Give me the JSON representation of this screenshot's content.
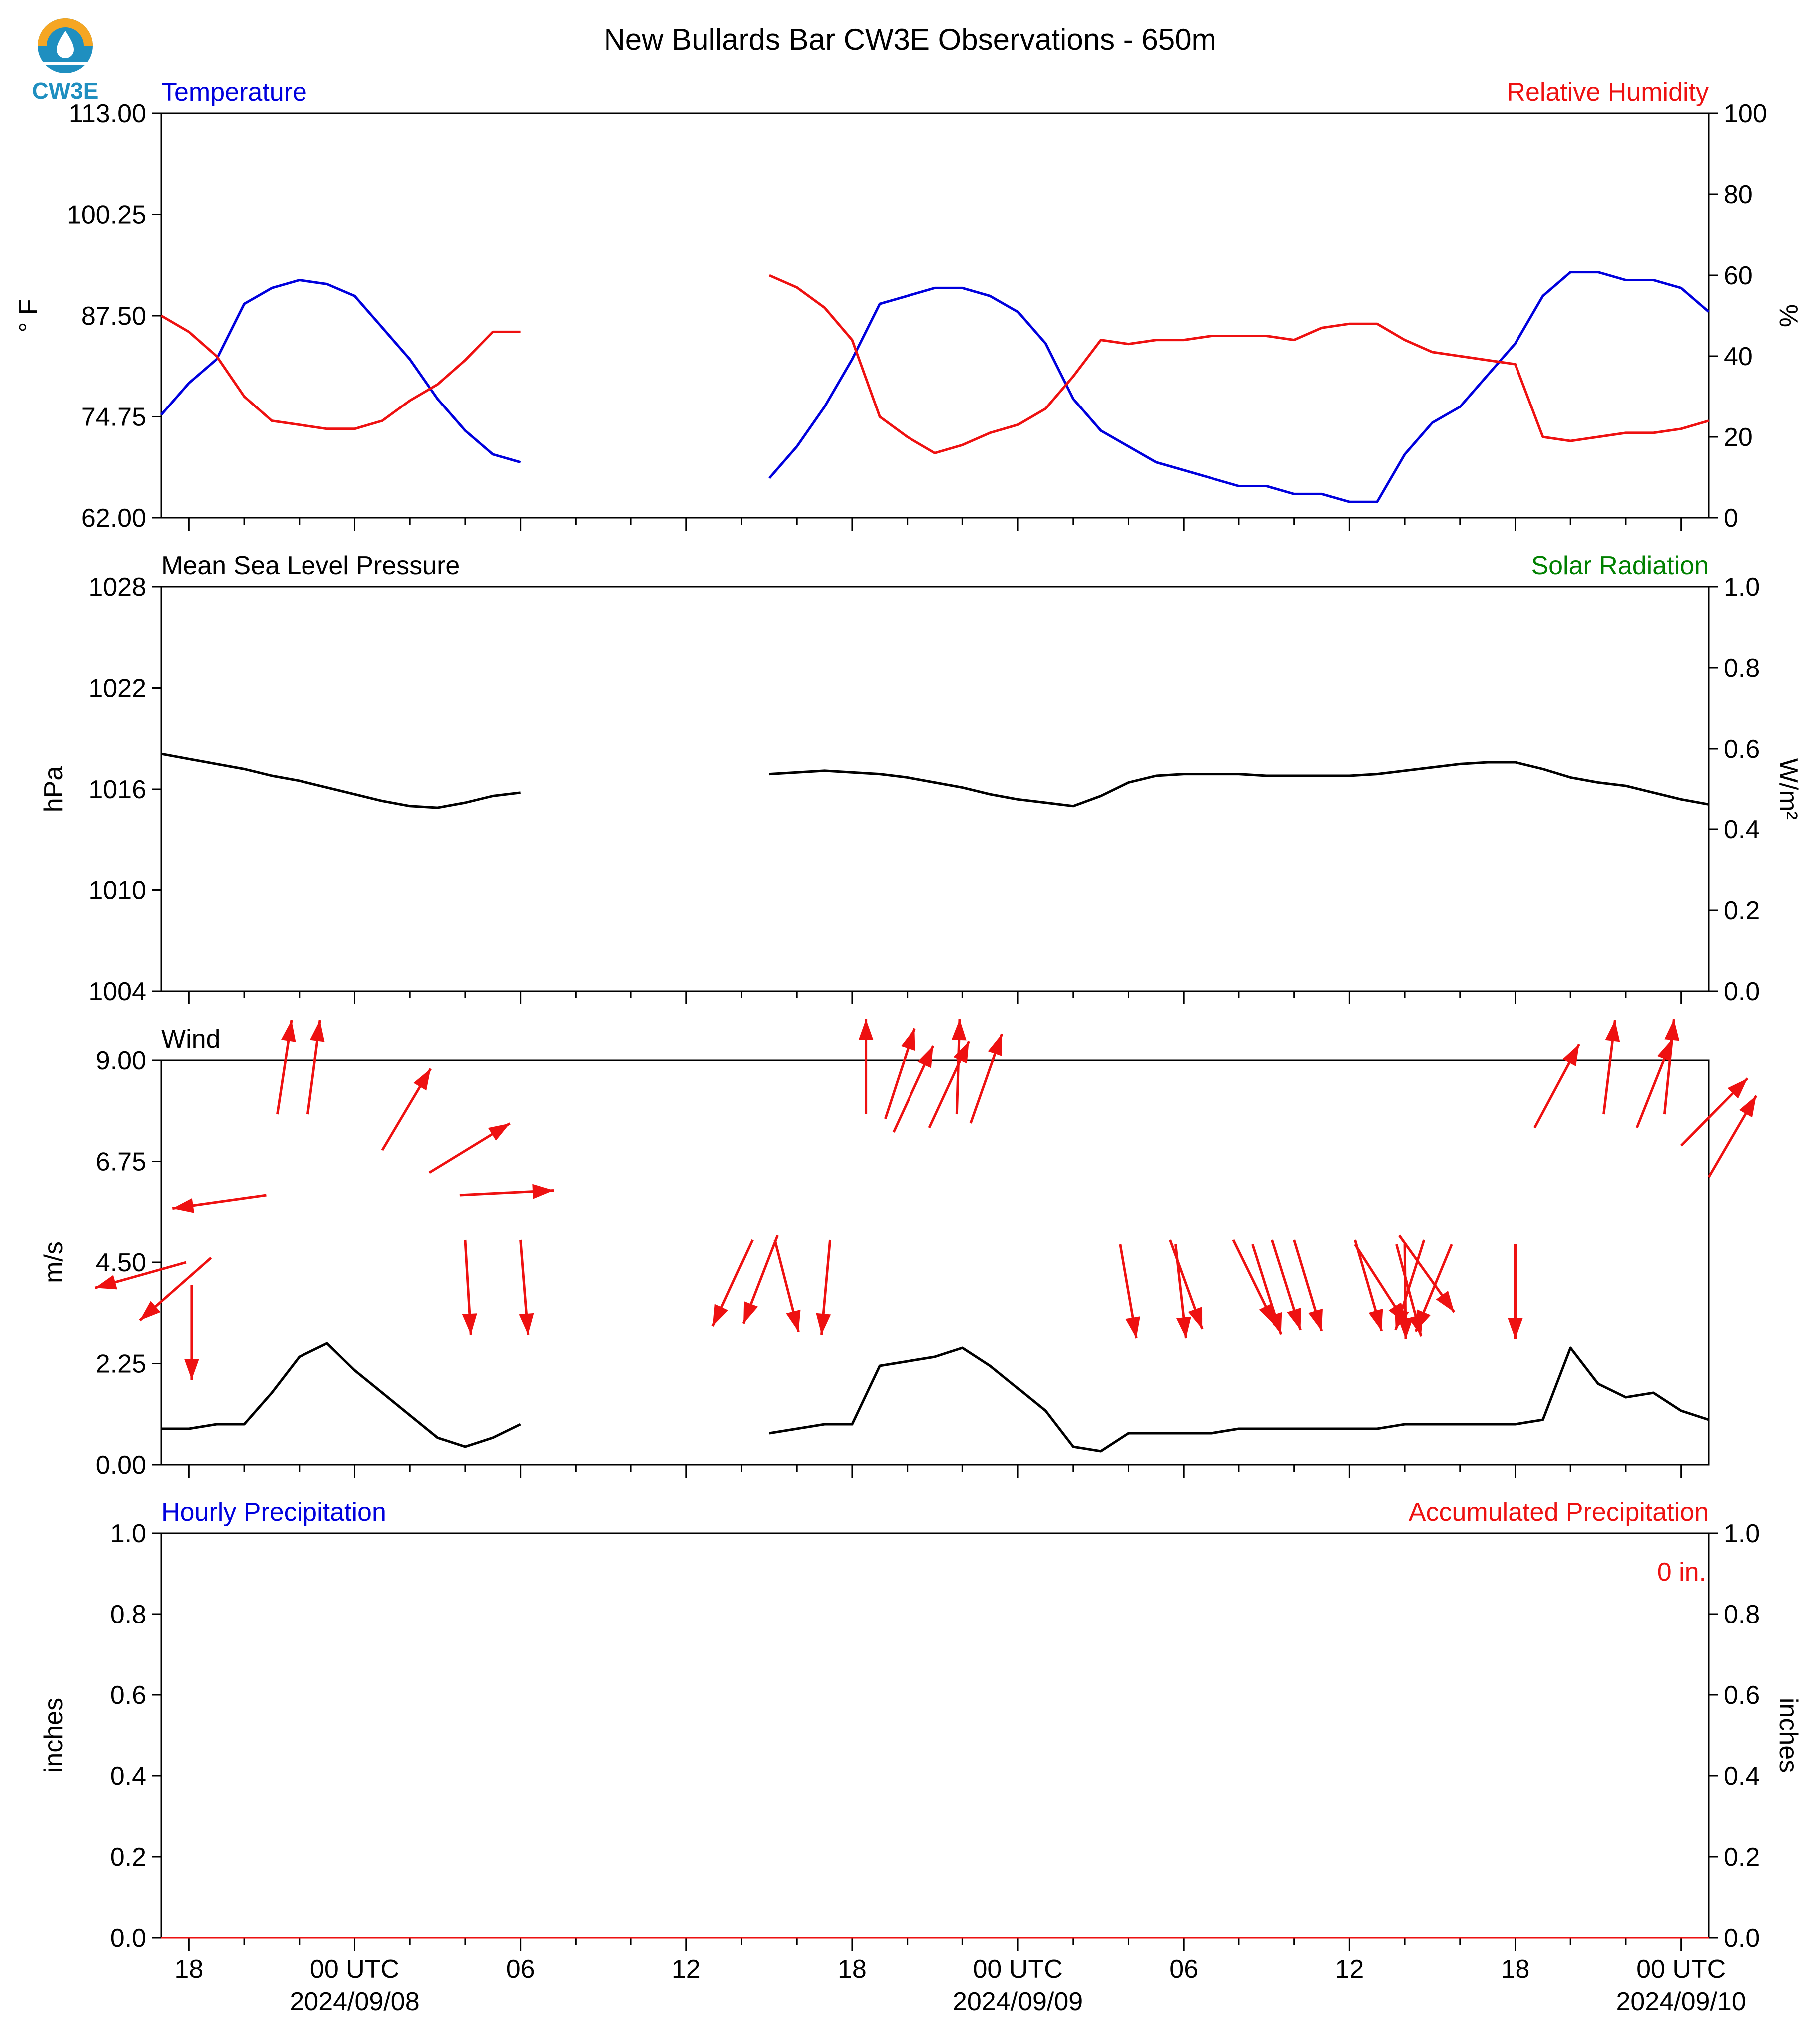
{
  "logo": {
    "text": "CW3E"
  },
  "title": "New Bullards Bar CW3E Observations - 650m",
  "colors": {
    "blue": "#0000dd",
    "red": "#ee1111",
    "green": "#008000",
    "black": "#000000",
    "logo_blue": "#1f8fc0",
    "logo_orange": "#f5a623"
  },
  "x_axis": {
    "tick_labels": [
      {
        "label": "18",
        "date": "",
        "hour": -6
      },
      {
        "label": "00 UTC",
        "date": "2024/09/08",
        "hour": 0
      },
      {
        "label": "06",
        "date": "",
        "hour": 6
      },
      {
        "label": "12",
        "date": "",
        "hour": 12
      },
      {
        "label": "18",
        "date": "",
        "hour": 18
      },
      {
        "label": "00 UTC",
        "date": "2024/09/09",
        "hour": 24
      },
      {
        "label": "06",
        "date": "",
        "hour": 30
      },
      {
        "label": "12",
        "date": "",
        "hour": 36
      },
      {
        "label": "18",
        "date": "",
        "hour": 42
      },
      {
        "label": "00 UTC",
        "date": "2024/09/10",
        "hour": 48
      }
    ],
    "range_hours": [
      -7,
      49
    ]
  },
  "chart_data": [
    {
      "type": "line",
      "panel": "temperature-humidity",
      "left_title": "Temperature",
      "right_title": "Relative Humidity",
      "ylabel": "° F",
      "ylabel_right": "%",
      "ylim": [
        62,
        113
      ],
      "ylim_right": [
        0,
        100
      ],
      "yticks": [
        "62.00",
        "74.75",
        "87.50",
        "100.25",
        "113.00"
      ],
      "yticks_right": [
        "0",
        "20",
        "40",
        "60",
        "80",
        "100"
      ],
      "series": [
        {
          "name": "Temperature",
          "color": "#0000dd",
          "axis": "left",
          "x": [
            -7,
            -6,
            -5,
            -4,
            -3,
            -2,
            -1,
            0,
            1,
            2,
            3,
            4,
            5,
            6,
            null,
            15,
            16,
            17,
            18,
            19,
            20,
            21,
            22,
            23,
            24,
            25,
            26,
            27,
            28,
            29,
            30,
            31,
            32,
            33,
            34,
            35,
            36,
            37,
            38,
            39,
            40,
            41,
            42,
            43,
            44,
            45,
            46,
            47,
            48,
            49
          ],
          "y": [
            75,
            79,
            82,
            89,
            91,
            92,
            91.5,
            90,
            86,
            82,
            77,
            73,
            70,
            69,
            null,
            67,
            71,
            76,
            82,
            89,
            90,
            91,
            91,
            90,
            88,
            84,
            77,
            73,
            71,
            69,
            68,
            67,
            66,
            66,
            65,
            65,
            64,
            64,
            70,
            74,
            76,
            80,
            84,
            90,
            93,
            93,
            92,
            92,
            91,
            88
          ]
        },
        {
          "name": "Relative Humidity",
          "color": "#ee1111",
          "axis": "right",
          "x": [
            -7,
            -6,
            -5,
            -4,
            -3,
            -2,
            -1,
            0,
            1,
            2,
            3,
            4,
            5,
            6,
            null,
            15,
            16,
            17,
            18,
            19,
            20,
            21,
            22,
            23,
            24,
            25,
            26,
            27,
            28,
            29,
            30,
            31,
            32,
            33,
            34,
            35,
            36,
            37,
            38,
            39,
            40,
            41,
            42,
            43,
            44,
            45,
            46,
            47,
            48,
            49
          ],
          "y": [
            50,
            46,
            40,
            30,
            24,
            23,
            22,
            22,
            24,
            29,
            33,
            39,
            46,
            46,
            null,
            60,
            57,
            52,
            44,
            25,
            20,
            16,
            18,
            21,
            23,
            27,
            35,
            44,
            43,
            44,
            44,
            45,
            45,
            45,
            44,
            47,
            48,
            48,
            44,
            41,
            40,
            39,
            38,
            20,
            19,
            20,
            21,
            21,
            22,
            24
          ]
        }
      ]
    },
    {
      "type": "line",
      "panel": "pressure-solar",
      "left_title": "Mean Sea Level Pressure",
      "right_title": "Solar Radiation",
      "ylabel": "hPa",
      "ylabel_right": "W/m²",
      "ylim": [
        1004,
        1028
      ],
      "ylim_right": [
        0,
        1
      ],
      "yticks": [
        "1004",
        "1010",
        "1016",
        "1022",
        "1028"
      ],
      "yticks_right": [
        "0.0",
        "0.2",
        "0.4",
        "0.6",
        "0.8",
        "1.0"
      ],
      "series": [
        {
          "name": "Mean Sea Level Pressure",
          "color": "#000000",
          "axis": "left",
          "x": [
            -7,
            -6,
            -5,
            -4,
            -3,
            -2,
            -1,
            0,
            1,
            2,
            3,
            4,
            5,
            6,
            null,
            15,
            16,
            17,
            18,
            19,
            20,
            21,
            22,
            23,
            24,
            25,
            26,
            27,
            28,
            29,
            30,
            31,
            32,
            33,
            34,
            35,
            36,
            37,
            38,
            39,
            40,
            41,
            42,
            43,
            44,
            45,
            46,
            47,
            48,
            49
          ],
          "y": [
            1018.1,
            1017.8,
            1017.5,
            1017.2,
            1016.8,
            1016.5,
            1016.1,
            1015.7,
            1015.3,
            1015.0,
            1014.9,
            1015.2,
            1015.6,
            1015.8,
            null,
            1016.9,
            1017.0,
            1017.1,
            1017.0,
            1016.9,
            1016.7,
            1016.4,
            1016.1,
            1015.7,
            1015.4,
            1015.2,
            1015.0,
            1015.6,
            1016.4,
            1016.8,
            1016.9,
            1016.9,
            1016.9,
            1016.8,
            1016.8,
            1016.8,
            1016.8,
            1016.9,
            1017.1,
            1017.3,
            1017.5,
            1017.6,
            1017.6,
            1017.2,
            1016.7,
            1016.4,
            1016.2,
            1015.8,
            1015.4,
            1015.1
          ]
        },
        {
          "name": "Solar Radiation",
          "color": "#008000",
          "axis": "right",
          "x": [],
          "y": []
        }
      ]
    },
    {
      "type": "line",
      "panel": "wind",
      "left_title": "Wind",
      "ylabel": "m/s",
      "ylim": [
        0,
        9
      ],
      "yticks": [
        "0.00",
        "2.25",
        "4.50",
        "6.75",
        "9.00"
      ],
      "series": [
        {
          "name": "Wind",
          "color": "#000000",
          "axis": "left",
          "x": [
            -7,
            -6,
            -5,
            -4,
            -3,
            -2,
            -1,
            0,
            1,
            2,
            3,
            4,
            5,
            6,
            null,
            15,
            16,
            17,
            18,
            19,
            20,
            21,
            22,
            23,
            24,
            25,
            26,
            27,
            28,
            29,
            30,
            31,
            32,
            33,
            34,
            35,
            36,
            37,
            38,
            39,
            40,
            41,
            42,
            43,
            44,
            45,
            46,
            47,
            48,
            49
          ],
          "y": [
            0.8,
            0.8,
            0.9,
            0.9,
            1.6,
            2.4,
            2.7,
            2.1,
            1.6,
            1.1,
            0.6,
            0.4,
            0.6,
            0.9,
            null,
            0.7,
            0.8,
            0.9,
            0.9,
            2.2,
            2.3,
            2.4,
            2.6,
            2.2,
            1.7,
            1.2,
            0.4,
            0.3,
            0.7,
            0.7,
            0.7,
            0.7,
            0.8,
            0.8,
            0.8,
            0.8,
            0.8,
            0.8,
            0.9,
            0.9,
            0.9,
            0.9,
            0.9,
            1.0,
            2.6,
            1.8,
            1.5,
            1.6,
            1.2,
            1.0
          ]
        }
      ],
      "barbs": {
        "color": "#ee1111",
        "vectors": [
          {
            "x": -6.1,
            "y": 4.5,
            "u": -0.96,
            "v": 0.27
          },
          {
            "x": -5.9,
            "y": 4.0,
            "u": 0.0,
            "v": 1.0
          },
          {
            "x": -5.2,
            "y": 4.6,
            "u": -0.75,
            "v": 0.66
          },
          {
            "x": -3.2,
            "y": 6.0,
            "u": -0.99,
            "v": 0.14
          },
          {
            "x": -2.8,
            "y": 7.8,
            "u": 0.15,
            "v": -0.99
          },
          {
            "x": -1.7,
            "y": 7.8,
            "u": 0.13,
            "v": -0.99
          },
          {
            "x": 1.0,
            "y": 7.0,
            "u": 0.51,
            "v": -0.86
          },
          {
            "x": 2.7,
            "y": 6.5,
            "u": 0.85,
            "v": -0.52
          },
          {
            "x": 3.8,
            "y": 6.0,
            "u": 0.99,
            "v": -0.05
          },
          {
            "x": 4.0,
            "y": 5.0,
            "u": 0.06,
            "v": 1.0
          },
          {
            "x": 6.0,
            "y": 5.0,
            "u": 0.08,
            "v": 1.0
          },
          {
            "x": 14.4,
            "y": 5.0,
            "u": -0.42,
            "v": 0.91
          },
          {
            "x": 15.2,
            "y": 5.0,
            "u": 0.25,
            "v": 0.97
          },
          {
            "x": 15.3,
            "y": 5.1,
            "u": -0.36,
            "v": 0.93
          },
          {
            "x": 17.2,
            "y": 5.0,
            "u": -0.09,
            "v": 1.0
          },
          {
            "x": 18.5,
            "y": 7.8,
            "u": 0.0,
            "v": -1.0
          },
          {
            "x": 19.2,
            "y": 7.7,
            "u": 0.31,
            "v": -0.95
          },
          {
            "x": 19.5,
            "y": 7.4,
            "u": 0.42,
            "v": -0.91
          },
          {
            "x": 20.8,
            "y": 7.5,
            "u": 0.42,
            "v": -0.91
          },
          {
            "x": 21.8,
            "y": 7.8,
            "u": 0.03,
            "v": -1.0
          },
          {
            "x": 22.3,
            "y": 7.6,
            "u": 0.33,
            "v": -0.94
          },
          {
            "x": 27.7,
            "y": 4.9,
            "u": 0.17,
            "v": 0.99
          },
          {
            "x": 29.5,
            "y": 5.0,
            "u": 0.34,
            "v": 0.94
          },
          {
            "x": 29.7,
            "y": 4.9,
            "u": 0.11,
            "v": 0.99
          },
          {
            "x": 31.8,
            "y": 5.0,
            "u": 0.44,
            "v": 0.9
          },
          {
            "x": 32.5,
            "y": 4.9,
            "u": 0.3,
            "v": 0.95
          },
          {
            "x": 33.2,
            "y": 5.0,
            "u": 0.3,
            "v": 0.95
          },
          {
            "x": 34.0,
            "y": 5.0,
            "u": 0.29,
            "v": 0.96
          },
          {
            "x": 36.2,
            "y": 4.9,
            "u": 0.54,
            "v": 0.84
          },
          {
            "x": 36.2,
            "y": 5.0,
            "u": 0.28,
            "v": 0.96
          },
          {
            "x": 37.7,
            "y": 4.9,
            "u": 0.26,
            "v": 0.97
          },
          {
            "x": 37.8,
            "y": 5.1,
            "u": 0.58,
            "v": 0.81
          },
          {
            "x": 38.0,
            "y": 4.9,
            "u": 0.01,
            "v": 1.0
          },
          {
            "x": 38.7,
            "y": 5.0,
            "u": -0.3,
            "v": 0.95
          },
          {
            "x": 39.7,
            "y": 4.9,
            "u": -0.38,
            "v": 0.92
          },
          {
            "x": 42.0,
            "y": 4.9,
            "u": 0.0,
            "v": 1.0
          },
          {
            "x": 42.7,
            "y": 7.5,
            "u": 0.47,
            "v": -0.88
          },
          {
            "x": 45.2,
            "y": 7.8,
            "u": 0.12,
            "v": -0.99
          },
          {
            "x": 46.4,
            "y": 7.5,
            "u": 0.37,
            "v": -0.93
          },
          {
            "x": 47.4,
            "y": 7.8,
            "u": 0.1,
            "v": -1.0
          },
          {
            "x": 48.0,
            "y": 7.1,
            "u": 0.7,
            "v": -0.71
          },
          {
            "x": 49.0,
            "y": 6.4,
            "u": 0.5,
            "v": -0.86
          }
        ]
      }
    },
    {
      "type": "line",
      "panel": "precipitation",
      "left_title": "Hourly Precipitation",
      "right_title": "Accumulated Precipitation",
      "ylabel": "inches",
      "ylabel_right": "inches",
      "ylim": [
        0,
        1
      ],
      "ylim_right": [
        0,
        1
      ],
      "yticks": [
        "0.0",
        "0.2",
        "0.4",
        "0.6",
        "0.8",
        "1.0"
      ],
      "yticks_right": [
        "0.0",
        "0.2",
        "0.4",
        "0.6",
        "0.8",
        "1.0"
      ],
      "annotation": "0 in.",
      "series": [
        {
          "name": "Hourly Precipitation",
          "color": "#0000dd",
          "axis": "left",
          "x": [
            -7,
            49
          ],
          "y": [
            0,
            0
          ]
        },
        {
          "name": "Accumulated Precipitation",
          "color": "#ee1111",
          "axis": "right",
          "x": [
            -7,
            49
          ],
          "y": [
            0,
            0
          ]
        }
      ]
    }
  ]
}
